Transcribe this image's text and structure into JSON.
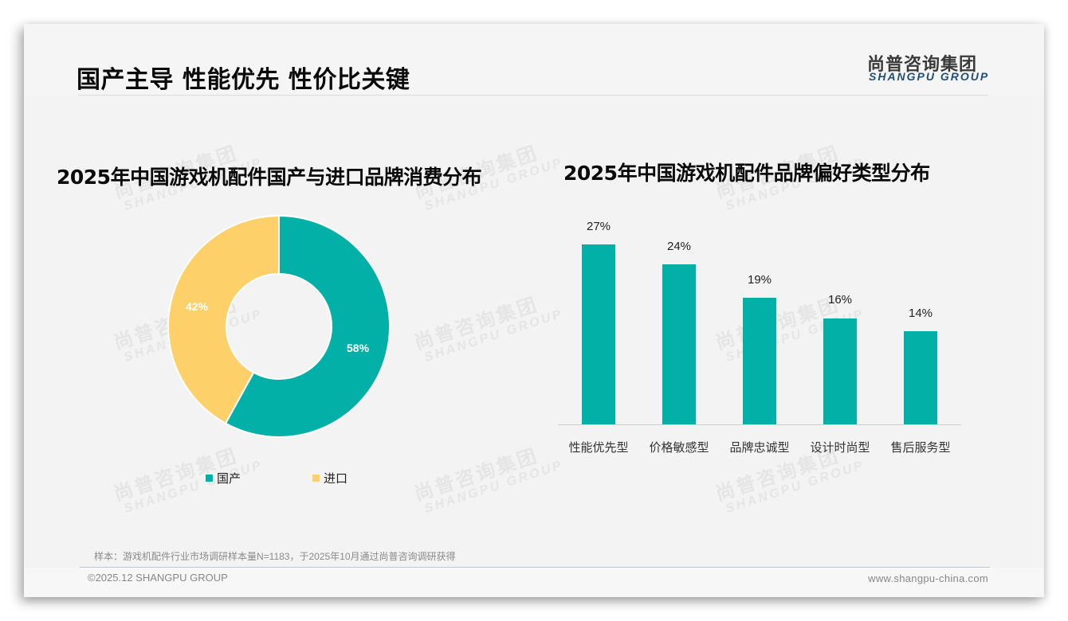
{
  "header": {
    "title": "国产主导 性能优先 性价比关键",
    "logo_cn": "尚普咨询集团",
    "logo_en": "SHANGPU GROUP"
  },
  "watermark": {
    "cn": "尚普咨询集团",
    "en": "SHANGPU GROUP"
  },
  "colors": {
    "teal": "#02b0a8",
    "yellow": "#fdd06a",
    "title": "#0a0a0a",
    "logo_blue": "#1f4e79"
  },
  "chart_data": [
    {
      "type": "pie",
      "subtype": "donut",
      "title": "2025年中国游戏机配件国产与进口品牌消费分布",
      "categories": [
        "国产",
        "进口"
      ],
      "values": [
        58,
        42
      ],
      "labels": [
        "58%",
        "42%"
      ],
      "colors": [
        "#02b0a8",
        "#fdd06a"
      ],
      "legend_position": "bottom",
      "unit": "%"
    },
    {
      "type": "bar",
      "title": "2025年中国游戏机配件品牌偏好类型分布",
      "categories": [
        "性能优先型",
        "价格敏感型",
        "品牌忠诚型",
        "设计时尚型",
        "售后服务型"
      ],
      "values": [
        27,
        24,
        19,
        16,
        14
      ],
      "labels": [
        "27%",
        "24%",
        "19%",
        "16%",
        "14%"
      ],
      "color": "#02b0a8",
      "xlabel": "",
      "ylabel": "",
      "grid": false,
      "ylim": [
        0,
        30
      ],
      "unit": "%"
    }
  ],
  "footer": {
    "sample_note": "样本：游戏机配件行业市场调研样本量N=1183，于2025年10月通过尚普咨询调研获得",
    "copyright": "©2025.12 SHANGPU GROUP",
    "website": "www.shangpu-china.com"
  }
}
